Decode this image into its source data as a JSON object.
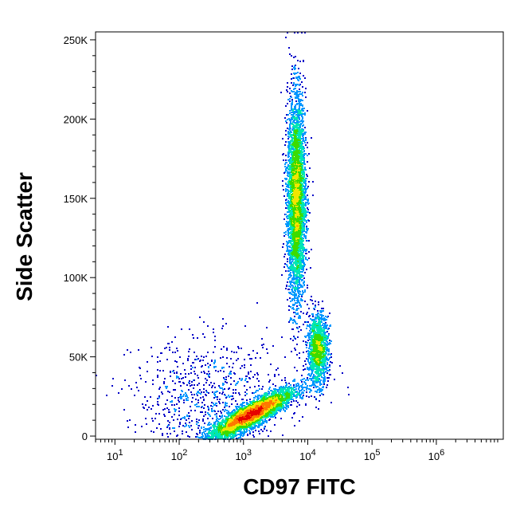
{
  "chart_data": {
    "type": "scatter",
    "subtype": "flow cytometry density dot plot",
    "xlabel": "CD97 FITC",
    "ylabel": "Side Scatter",
    "x_scale": "log",
    "xlim": [
      5,
      11000000
    ],
    "ylim": [
      -2000,
      255000
    ],
    "x_ticks": [
      {
        "value": 10,
        "base": "10",
        "exp": "1"
      },
      {
        "value": 100,
        "base": "10",
        "exp": "2"
      },
      {
        "value": 1000,
        "base": "10",
        "exp": "3"
      },
      {
        "value": 10000,
        "base": "10",
        "exp": "4"
      },
      {
        "value": 100000,
        "base": "10",
        "exp": "5"
      },
      {
        "value": 1000000,
        "base": "10",
        "exp": "6"
      }
    ],
    "y_ticks": [
      {
        "value": 0,
        "label": "0"
      },
      {
        "value": 50000,
        "label": "50K"
      },
      {
        "value": 100000,
        "label": "100K"
      },
      {
        "value": 150000,
        "label": "150K"
      },
      {
        "value": 200000,
        "label": "200K"
      },
      {
        "value": 250000,
        "label": "250K"
      }
    ],
    "color_scale": [
      "#0000c8",
      "#0096ff",
      "#00e6b4",
      "#3cdc00",
      "#f0e600",
      "#ff7800",
      "#e60000"
    ],
    "populations": [
      {
        "name": "",
        "x_center": 1300,
        "x_spread_decades": 0.33,
        "y_center": 14000,
        "y_spread": 5500,
        "orientation": "tilted-up",
        "weight": 0.42
      },
      {
        "name": "",
        "x_center": 6500,
        "x_spread_decades": 0.07,
        "y_center": 150000,
        "y_spread": 32000,
        "orientation": "vertical",
        "weight": 0.38
      },
      {
        "name": "",
        "x_center": 14000,
        "x_spread_decades": 0.08,
        "y_center": 55000,
        "y_spread": 11000,
        "orientation": "vertical",
        "weight": 0.13
      },
      {
        "name": "",
        "x_center": 300,
        "x_spread_decades": 0.6,
        "y_center": 25000,
        "y_spread": 18000,
        "orientation": "sparse-scatter",
        "weight": 0.07
      }
    ],
    "grid": false,
    "legend": "none"
  }
}
